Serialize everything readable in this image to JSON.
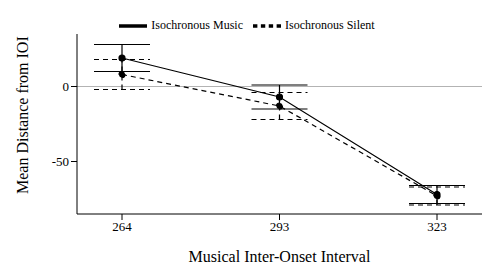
{
  "chart_data": {
    "type": "line",
    "x_label": "Musical Inter-Onset Interval",
    "y_label": "Mean Distance from IOI",
    "categories": [
      "264",
      "293",
      "323"
    ],
    "series": [
      {
        "name": "Isochronous Music",
        "color": "#000000",
        "line_style": "solid",
        "marker": "circle",
        "values": [
          19,
          -7,
          -72
        ],
        "errors": [
          9,
          8,
          6
        ]
      },
      {
        "name": "Isochronous Silent",
        "color": "#000000",
        "line_style": "dashed",
        "marker": "circle",
        "values": [
          8,
          -13,
          -73
        ],
        "errors": [
          10,
          9,
          6
        ]
      }
    ],
    "ylim": [
      -85,
      35
    ],
    "yticks": [
      -50,
      0
    ],
    "legend": "top"
  }
}
